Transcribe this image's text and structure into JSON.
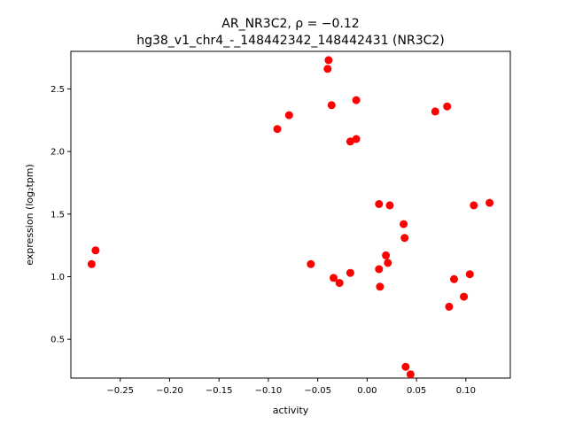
{
  "chart_data": {
    "type": "scatter",
    "title_line1": "AR_NR3C2, ρ = −0.12",
    "title_line2": "hg38_v1_chr4_-_148442342_148442431 (NR3C2)",
    "xlabel": "activity",
    "ylabel": "expression (log₂tpm)",
    "xlim": [
      -0.3,
      0.145
    ],
    "ylim": [
      0.19,
      2.8
    ],
    "xticks": [
      -0.25,
      -0.2,
      -0.15,
      -0.1,
      -0.05,
      0.0,
      0.05,
      0.1
    ],
    "xtick_labels": [
      "−0.25",
      "−0.20",
      "−0.15",
      "−0.10",
      "−0.05",
      "0.00",
      "0.05",
      "0.10"
    ],
    "yticks": [
      0.5,
      1.0,
      1.5,
      2.0,
      2.5
    ],
    "ytick_labels": [
      "0.5",
      "1.0",
      "1.5",
      "2.0",
      "2.5"
    ],
    "marker_color": "#ff0000",
    "grid": false,
    "points": [
      {
        "x": -0.279,
        "y": 1.1
      },
      {
        "x": -0.275,
        "y": 1.21
      },
      {
        "x": -0.091,
        "y": 2.18
      },
      {
        "x": -0.079,
        "y": 2.29
      },
      {
        "x": -0.057,
        "y": 1.1
      },
      {
        "x": -0.039,
        "y": 2.73
      },
      {
        "x": -0.04,
        "y": 2.66
      },
      {
        "x": -0.036,
        "y": 2.37
      },
      {
        "x": -0.034,
        "y": 0.99
      },
      {
        "x": -0.028,
        "y": 0.95
      },
      {
        "x": -0.017,
        "y": 2.08
      },
      {
        "x": -0.017,
        "y": 1.03
      },
      {
        "x": -0.011,
        "y": 2.41
      },
      {
        "x": -0.011,
        "y": 2.1
      },
      {
        "x": 0.012,
        "y": 1.58
      },
      {
        "x": 0.012,
        "y": 1.06
      },
      {
        "x": 0.013,
        "y": 0.92
      },
      {
        "x": 0.019,
        "y": 1.17
      },
      {
        "x": 0.021,
        "y": 1.11
      },
      {
        "x": 0.023,
        "y": 1.57
      },
      {
        "x": 0.037,
        "y": 1.42
      },
      {
        "x": 0.038,
        "y": 1.31
      },
      {
        "x": 0.039,
        "y": 0.28
      },
      {
        "x": 0.044,
        "y": 0.22
      },
      {
        "x": 0.069,
        "y": 2.32
      },
      {
        "x": 0.081,
        "y": 2.36
      },
      {
        "x": 0.083,
        "y": 0.76
      },
      {
        "x": 0.088,
        "y": 0.98
      },
      {
        "x": 0.098,
        "y": 0.84
      },
      {
        "x": 0.104,
        "y": 1.02
      },
      {
        "x": 0.108,
        "y": 1.57
      },
      {
        "x": 0.124,
        "y": 1.59
      }
    ]
  }
}
